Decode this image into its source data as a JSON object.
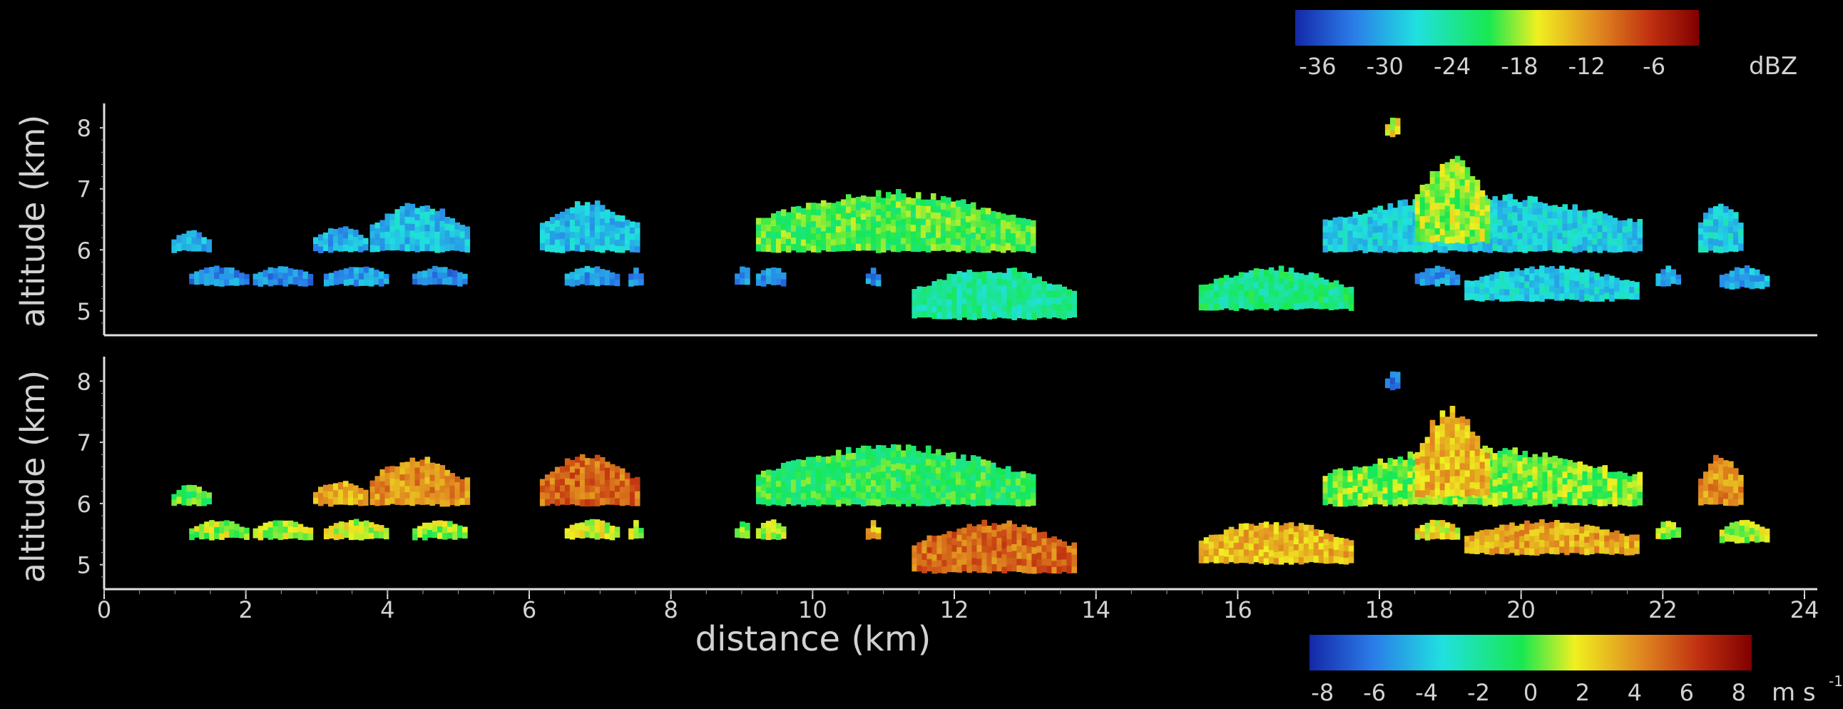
{
  "chart_data": [
    {
      "type": "heatmap",
      "panel": "top",
      "quantity": "reflectivity",
      "ylabel": "altitude (km)",
      "xlim": [
        0,
        24
      ],
      "ylim": [
        4.6,
        8.4
      ],
      "yticks": [
        5,
        6,
        7,
        8
      ],
      "colorbar": {
        "ticks": [
          -36,
          -30,
          -24,
          -18,
          -12,
          -6
        ],
        "unit": "dBZ",
        "range": [
          -38,
          -2
        ]
      },
      "segments": [
        {
          "x0": 0.95,
          "x1": 1.45,
          "bottom": 6.0,
          "top": 6.33,
          "value": -30
        },
        {
          "x0": 2.95,
          "x1": 3.7,
          "bottom": 6.0,
          "top": 6.4,
          "value": -30
        },
        {
          "x0": 3.75,
          "x1": 5.1,
          "bottom": 6.0,
          "top": 6.8,
          "value": -29
        },
        {
          "x0": 6.15,
          "x1": 7.5,
          "bottom": 6.0,
          "top": 6.85,
          "value": -29
        },
        {
          "x0": 9.2,
          "x1": 13.1,
          "bottom": 6.0,
          "top": 7.0,
          "value": -20
        },
        {
          "x0": 17.2,
          "x1": 21.7,
          "bottom": 6.0,
          "top": 6.95,
          "value": -28
        },
        {
          "x0": 18.5,
          "x1": 19.5,
          "bottom": 6.15,
          "top": 7.6,
          "value": -18
        },
        {
          "x0": 18.08,
          "x1": 18.28,
          "bottom": 7.9,
          "top": 8.2,
          "value": -16
        },
        {
          "x0": 22.5,
          "x1": 23.1,
          "bottom": 6.0,
          "top": 6.85,
          "value": -28
        },
        {
          "x0": 1.2,
          "x1": 2.0,
          "bottom": 5.45,
          "top": 5.75,
          "value": -32
        },
        {
          "x0": 2.1,
          "x1": 2.9,
          "bottom": 5.45,
          "top": 5.75,
          "value": -32
        },
        {
          "x0": 3.1,
          "x1": 4.0,
          "bottom": 5.45,
          "top": 5.75,
          "value": -31
        },
        {
          "x0": 4.35,
          "x1": 5.1,
          "bottom": 5.45,
          "top": 5.75,
          "value": -32
        },
        {
          "x0": 6.5,
          "x1": 7.25,
          "bottom": 5.45,
          "top": 5.75,
          "value": -31
        },
        {
          "x0": 7.4,
          "x1": 7.55,
          "bottom": 5.45,
          "top": 5.75,
          "value": -32
        },
        {
          "x0": 8.9,
          "x1": 9.1,
          "bottom": 5.45,
          "top": 5.75,
          "value": -32
        },
        {
          "x0": 9.2,
          "x1": 9.6,
          "bottom": 5.45,
          "top": 5.75,
          "value": -32
        },
        {
          "x0": 10.75,
          "x1": 10.9,
          "bottom": 5.45,
          "top": 5.75,
          "value": -32
        },
        {
          "x0": 11.4,
          "x1": 13.7,
          "bottom": 4.9,
          "top": 5.75,
          "value": -24
        },
        {
          "x0": 15.45,
          "x1": 17.6,
          "bottom": 5.05,
          "top": 5.75,
          "value": -23
        },
        {
          "x0": 18.5,
          "x1": 19.1,
          "bottom": 5.45,
          "top": 5.75,
          "value": -31
        },
        {
          "x0": 19.2,
          "x1": 21.6,
          "bottom": 5.2,
          "top": 5.75,
          "value": -28
        },
        {
          "x0": 21.9,
          "x1": 22.2,
          "bottom": 5.45,
          "top": 5.75,
          "value": -31
        },
        {
          "x0": 22.8,
          "x1": 23.45,
          "bottom": 5.4,
          "top": 5.75,
          "value": -30
        }
      ]
    },
    {
      "type": "heatmap",
      "panel": "bottom",
      "quantity": "velocity",
      "xlabel": "distance (km)",
      "ylabel": "altitude (km)",
      "xlim": [
        0,
        24
      ],
      "xticks": [
        0,
        2,
        4,
        6,
        8,
        10,
        12,
        14,
        16,
        18,
        20,
        22,
        24
      ],
      "ylim": [
        4.6,
        8.4
      ],
      "yticks": [
        5,
        6,
        7,
        8
      ],
      "colorbar": {
        "ticks": [
          -8,
          -6,
          -4,
          -2,
          0,
          2,
          4,
          6,
          8
        ],
        "unit": "m s",
        "unit_exponent": "-1",
        "range": [
          -8.5,
          8.5
        ]
      },
      "segments": [
        {
          "x0": 0.95,
          "x1": 1.45,
          "bottom": 6.0,
          "top": 6.33,
          "value": 0
        },
        {
          "x0": 2.95,
          "x1": 3.7,
          "bottom": 6.0,
          "top": 6.4,
          "value": 3.5
        },
        {
          "x0": 3.75,
          "x1": 5.1,
          "bottom": 6.0,
          "top": 6.8,
          "value": 4
        },
        {
          "x0": 6.15,
          "x1": 7.5,
          "bottom": 6.0,
          "top": 6.85,
          "value": 5
        },
        {
          "x0": 9.2,
          "x1": 13.1,
          "bottom": 6.0,
          "top": 7.0,
          "value": -0.5
        },
        {
          "x0": 17.2,
          "x1": 21.7,
          "bottom": 6.0,
          "top": 6.95,
          "value": 0.5
        },
        {
          "x0": 18.5,
          "x1": 19.5,
          "bottom": 6.15,
          "top": 7.6,
          "value": 3
        },
        {
          "x0": 18.08,
          "x1": 18.28,
          "bottom": 7.9,
          "top": 8.2,
          "value": -6
        },
        {
          "x0": 22.5,
          "x1": 23.1,
          "bottom": 6.0,
          "top": 6.85,
          "value": 4
        },
        {
          "x0": 1.2,
          "x1": 2.0,
          "bottom": 5.45,
          "top": 5.75,
          "value": 1
        },
        {
          "x0": 2.1,
          "x1": 2.9,
          "bottom": 5.45,
          "top": 5.75,
          "value": 1
        },
        {
          "x0": 3.1,
          "x1": 4.0,
          "bottom": 5.45,
          "top": 5.75,
          "value": 1.5
        },
        {
          "x0": 4.35,
          "x1": 5.1,
          "bottom": 5.45,
          "top": 5.75,
          "value": 1
        },
        {
          "x0": 6.5,
          "x1": 7.25,
          "bottom": 5.45,
          "top": 5.75,
          "value": 1.5
        },
        {
          "x0": 7.4,
          "x1": 7.55,
          "bottom": 5.45,
          "top": 5.75,
          "value": 1
        },
        {
          "x0": 8.9,
          "x1": 9.1,
          "bottom": 5.45,
          "top": 5.75,
          "value": 1
        },
        {
          "x0": 9.2,
          "x1": 9.6,
          "bottom": 5.45,
          "top": 5.75,
          "value": 1
        },
        {
          "x0": 10.75,
          "x1": 10.9,
          "bottom": 5.45,
          "top": 5.75,
          "value": 3
        },
        {
          "x0": 11.4,
          "x1": 13.7,
          "bottom": 4.9,
          "top": 5.75,
          "value": 5
        },
        {
          "x0": 15.45,
          "x1": 17.6,
          "bottom": 5.05,
          "top": 5.75,
          "value": 3
        },
        {
          "x0": 18.5,
          "x1": 19.1,
          "bottom": 5.45,
          "top": 5.75,
          "value": 2
        },
        {
          "x0": 19.2,
          "x1": 21.6,
          "bottom": 5.2,
          "top": 5.75,
          "value": 3.5
        },
        {
          "x0": 21.9,
          "x1": 22.2,
          "bottom": 5.45,
          "top": 5.75,
          "value": 1
        },
        {
          "x0": 22.8,
          "x1": 23.45,
          "bottom": 5.4,
          "top": 5.75,
          "value": 1
        }
      ]
    }
  ]
}
